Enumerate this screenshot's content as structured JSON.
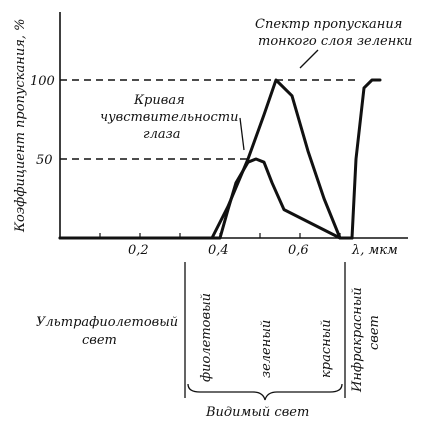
{
  "chart_data": {
    "type": "line",
    "ylabel": "Коэффициент пропускания, %",
    "xlabel": "λ, мкм",
    "x_ticks": [
      "0,2",
      "0,4",
      "0,6"
    ],
    "y_ticks": [
      "50",
      "100"
    ],
    "xlim": [
      0.0,
      0.8
    ],
    "ylim": [
      0,
      100
    ],
    "grid": false,
    "series": [
      {
        "name": "Кривая чувствительности глаза",
        "x": [
          0.0,
          0.4,
          0.42,
          0.44,
          0.47,
          0.49,
          0.51,
          0.53,
          0.56,
          0.7,
          0.73
        ],
        "y": [
          0,
          0,
          18,
          35,
          48,
          50,
          48,
          35,
          18,
          0,
          0
        ]
      },
      {
        "name": "Спектр пропускания тонкого слоя зеленки",
        "x": [
          0.0,
          0.38,
          0.42,
          0.47,
          0.51,
          0.54,
          0.58,
          0.62,
          0.66,
          0.7,
          0.73,
          0.74,
          0.76,
          0.78,
          0.8
        ],
        "y": [
          0,
          0,
          20,
          50,
          78,
          100,
          90,
          55,
          25,
          0,
          0,
          50,
          95,
          100,
          100
        ]
      }
    ],
    "annotations": {
      "transmission": [
        "Спектр пропускания",
        "тонкого слоя зеленки"
      ],
      "eye": [
        "Кривая",
        "чувствительности",
        "глаза"
      ]
    }
  },
  "regions": {
    "ultraviolet": [
      "Ультрафиолетовый",
      "свет"
    ],
    "violet": "фиолетовый",
    "green": "зеленый",
    "red": "красный",
    "infrared": [
      "Инфракрасный",
      "свет"
    ],
    "visible": "Видимый свет"
  }
}
